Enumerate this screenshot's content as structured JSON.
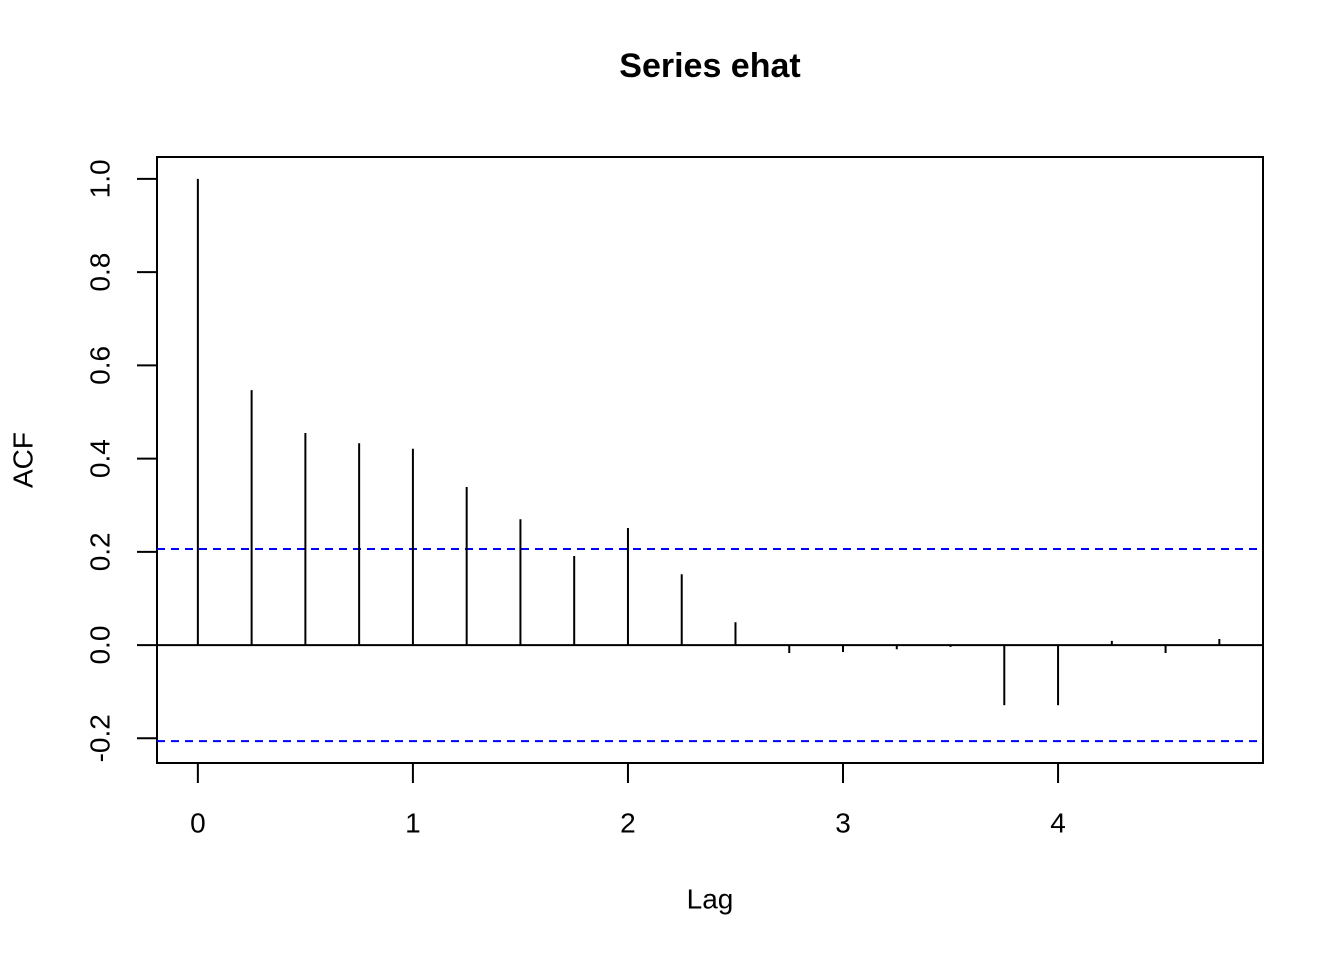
{
  "chart_data": {
    "type": "acf",
    "title": "Series  ehat",
    "x_label": "Lag",
    "y_label": "ACF",
    "x": [
      0,
      0.25,
      0.5,
      0.75,
      1,
      1.25,
      1.5,
      1.75,
      2,
      2.25,
      2.5,
      2.75,
      3,
      3.25,
      3.5,
      3.75,
      4,
      4.25,
      4.5,
      4.75
    ],
    "values": [
      1.0,
      0.547,
      0.455,
      0.433,
      0.421,
      0.339,
      0.27,
      0.191,
      0.251,
      0.152,
      0.049,
      -0.017,
      -0.015,
      -0.009,
      -0.004,
      -0.129,
      -0.129,
      0.009,
      -0.017,
      0.013
    ],
    "color": "#000000",
    "confidence_bounds": [
      0.206,
      -0.206
    ],
    "confidence_color": "#0000ff",
    "xlim": [
      -0.19,
      4.953
    ],
    "ylim": [
      -0.253,
      1.047
    ],
    "xticks": [
      0,
      1,
      2,
      3,
      4
    ],
    "yticks": [
      -0.2,
      {
        "value": 0,
        "label": "0.0"
      },
      0.2,
      0.4,
      0.6,
      0.8,
      {
        "value": 1,
        "label": "1.0"
      }
    ]
  }
}
